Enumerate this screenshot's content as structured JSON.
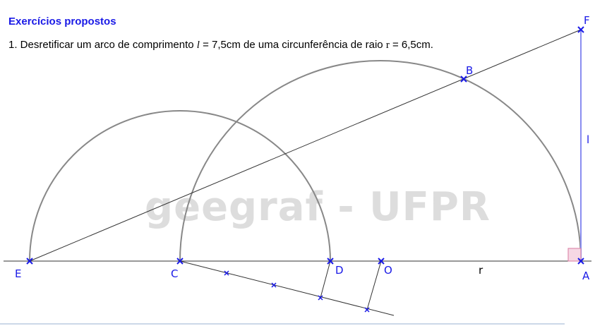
{
  "header": {
    "title": "Exercícios propostos",
    "problem": {
      "prefix": "1. Desretificar um arco de comprimento ",
      "l_symbol": "l",
      "mid1": " = 7,5cm de uma circunferência de raio ",
      "r_symbol": "r",
      "mid2": " = 6,5cm."
    }
  },
  "watermark": "geegraf - UFPR",
  "labels": {
    "A": "A",
    "B": "B",
    "C": "C",
    "D": "D",
    "E": "E",
    "F": "F",
    "O": "O",
    "r": "r",
    "l": "l"
  },
  "colors": {
    "title": "#1a1ae6",
    "points": "#1a1ae6",
    "segment_AF": "#8a8ef0",
    "arcs": "#888888",
    "right_angle_fill": "#f6d8e4",
    "right_angle_stroke": "#d87aa0",
    "bottom_rule": "#9ab0d0"
  }
}
